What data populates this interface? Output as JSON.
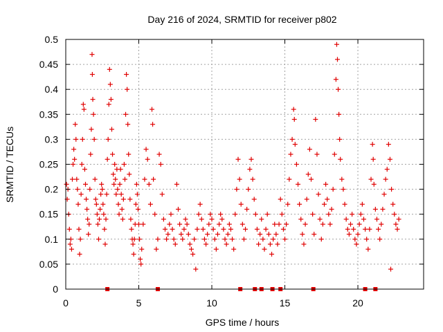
{
  "chart_data": {
    "type": "scatter",
    "title": "Day 216 of 2024, SRMTID for receiver p802",
    "xlabel": "GPS time / hours",
    "ylabel": "SRMTID / TECUs",
    "xlim": [
      0,
      24.5
    ],
    "ylim": [
      0,
      0.5
    ],
    "x_ticks": [
      0,
      5,
      10,
      15,
      20
    ],
    "x_tick_labels": [
      "0",
      "5",
      "10",
      "15",
      "20"
    ],
    "y_ticks": [
      0,
      0.05,
      0.1,
      0.15,
      0.2,
      0.25,
      0.3,
      0.35,
      0.4,
      0.45,
      0.5
    ],
    "y_tick_labels": [
      "0",
      "0.05",
      "0.1",
      "0.15",
      "0.2",
      "0.25",
      "0.3",
      "0.35",
      "0.4",
      "0.45",
      "0.5"
    ],
    "grid": true,
    "marker": "+",
    "color": "#e00000",
    "series": [
      {
        "name": "SRMTID",
        "points": [
          [
            0.05,
            0.21
          ],
          [
            0.1,
            0.18
          ],
          [
            0.15,
            0.2
          ],
          [
            0.2,
            0.15
          ],
          [
            0.25,
            0.12
          ],
          [
            0.3,
            0.09
          ],
          [
            0.35,
            0.1
          ],
          [
            0.4,
            0.08
          ],
          [
            0.45,
            0.22
          ],
          [
            0.5,
            0.25
          ],
          [
            0.55,
            0.28
          ],
          [
            0.6,
            0.26
          ],
          [
            0.65,
            0.33
          ],
          [
            0.7,
            0.3
          ],
          [
            0.75,
            0.22
          ],
          [
            0.8,
            0.2
          ],
          [
            0.85,
            0.17
          ],
          [
            0.9,
            0.12
          ],
          [
            0.95,
            0.07
          ],
          [
            1.0,
            0.1
          ],
          [
            1.05,
            0.19
          ],
          [
            1.1,
            0.25
          ],
          [
            1.15,
            0.3
          ],
          [
            1.2,
            0.37
          ],
          [
            1.25,
            0.36
          ],
          [
            1.3,
            0.24
          ],
          [
            1.35,
            0.21
          ],
          [
            1.4,
            0.18
          ],
          [
            1.45,
            0.16
          ],
          [
            1.5,
            0.14
          ],
          [
            1.55,
            0.11
          ],
          [
            1.6,
            0.13
          ],
          [
            1.65,
            0.2
          ],
          [
            1.7,
            0.27
          ],
          [
            1.75,
            0.32
          ],
          [
            1.8,
            0.47
          ],
          [
            1.82,
            0.43
          ],
          [
            1.85,
            0.38
          ],
          [
            1.9,
            0.35
          ],
          [
            1.95,
            0.3
          ],
          [
            2.0,
            0.22
          ],
          [
            2.05,
            0.18
          ],
          [
            2.1,
            0.17
          ],
          [
            2.15,
            0.15
          ],
          [
            2.2,
            0.13
          ],
          [
            2.25,
            0.1
          ],
          [
            2.3,
            0.14
          ],
          [
            2.35,
            0.16
          ],
          [
            2.4,
            0.19
          ],
          [
            2.45,
            0.21
          ],
          [
            2.5,
            0.2
          ],
          [
            2.55,
            0.17
          ],
          [
            2.6,
            0.15
          ],
          [
            2.65,
            0.12
          ],
          [
            2.7,
            0.09
          ],
          [
            2.75,
            0.14
          ],
          [
            2.8,
            0.19
          ],
          [
            2.85,
            0.26
          ],
          [
            2.9,
            0.3
          ],
          [
            2.95,
            0.37
          ],
          [
            3.0,
            0.44
          ],
          [
            3.05,
            0.41
          ],
          [
            3.1,
            0.38
          ],
          [
            3.15,
            0.32
          ],
          [
            3.2,
            0.27
          ],
          [
            3.25,
            0.23
          ],
          [
            3.3,
            0.21
          ],
          [
            3.35,
            0.25
          ],
          [
            3.4,
            0.22
          ],
          [
            3.45,
            0.19
          ],
          [
            3.5,
            0.24
          ],
          [
            3.55,
            0.2
          ],
          [
            3.6,
            0.17
          ],
          [
            3.65,
            0.15
          ],
          [
            3.7,
            0.21
          ],
          [
            3.75,
            0.24
          ],
          [
            3.8,
            0.19
          ],
          [
            3.85,
            0.16
          ],
          [
            3.9,
            0.14
          ],
          [
            3.95,
            0.18
          ],
          [
            4.0,
            0.25
          ],
          [
            4.05,
            0.22
          ],
          [
            4.1,
            0.35
          ],
          [
            4.15,
            0.43
          ],
          [
            4.2,
            0.4
          ],
          [
            4.25,
            0.33
          ],
          [
            4.3,
            0.27
          ],
          [
            4.35,
            0.23
          ],
          [
            4.4,
            0.18
          ],
          [
            4.45,
            0.14
          ],
          [
            4.5,
            0.12
          ],
          [
            4.55,
            0.1
          ],
          [
            4.6,
            0.09
          ],
          [
            4.65,
            0.07
          ],
          [
            4.7,
            0.1
          ],
          [
            4.75,
            0.13
          ],
          [
            4.8,
            0.17
          ],
          [
            4.85,
            0.21
          ],
          [
            4.9,
            0.19
          ],
          [
            4.95,
            0.16
          ],
          [
            5.0,
            0.13
          ],
          [
            5.05,
            0.1
          ],
          [
            5.1,
            0.06
          ],
          [
            5.15,
            0.05
          ],
          [
            5.2,
            0.08
          ],
          [
            5.3,
            0.13
          ],
          [
            5.4,
            0.22
          ],
          [
            5.5,
            0.28
          ],
          [
            5.6,
            0.26
          ],
          [
            5.7,
            0.21
          ],
          [
            5.8,
            0.17
          ],
          [
            5.9,
            0.36
          ],
          [
            5.95,
            0.33
          ],
          [
            6.0,
            0.22
          ],
          [
            6.1,
            0.15
          ],
          [
            6.2,
            0.08
          ],
          [
            6.3,
            0.1
          ],
          [
            6.4,
            0.27
          ],
          [
            6.5,
            0.25
          ],
          [
            6.6,
            0.19
          ],
          [
            6.7,
            0.14
          ],
          [
            6.8,
            0.12
          ],
          [
            6.9,
            0.1
          ],
          [
            7.0,
            0.11
          ],
          [
            7.1,
            0.13
          ],
          [
            7.2,
            0.15
          ],
          [
            7.3,
            0.12
          ],
          [
            7.4,
            0.1
          ],
          [
            7.5,
            0.09
          ],
          [
            7.6,
            0.21
          ],
          [
            7.7,
            0.16
          ],
          [
            7.8,
            0.13
          ],
          [
            7.9,
            0.11
          ],
          [
            8.0,
            0.1
          ],
          [
            8.1,
            0.12
          ],
          [
            8.2,
            0.14
          ],
          [
            8.3,
            0.13
          ],
          [
            8.4,
            0.11
          ],
          [
            8.5,
            0.09
          ],
          [
            8.6,
            0.08
          ],
          [
            8.7,
            0.07
          ],
          [
            8.8,
            0.1
          ],
          [
            8.9,
            0.04
          ],
          [
            9.0,
            0.12
          ],
          [
            9.1,
            0.15
          ],
          [
            9.2,
            0.17
          ],
          [
            9.3,
            0.14
          ],
          [
            9.4,
            0.12
          ],
          [
            9.5,
            0.1
          ],
          [
            9.6,
            0.09
          ],
          [
            9.7,
            0.11
          ],
          [
            9.8,
            0.13
          ],
          [
            9.9,
            0.15
          ],
          [
            10.0,
            0.14
          ],
          [
            10.1,
            0.12
          ],
          [
            10.2,
            0.1
          ],
          [
            10.3,
            0.08
          ],
          [
            10.4,
            0.11
          ],
          [
            10.5,
            0.13
          ],
          [
            10.6,
            0.15
          ],
          [
            10.7,
            0.14
          ],
          [
            10.8,
            0.12
          ],
          [
            10.9,
            0.1
          ],
          [
            11.0,
            0.09
          ],
          [
            11.1,
            0.11
          ],
          [
            11.2,
            0.13
          ],
          [
            11.3,
            0.12
          ],
          [
            11.4,
            0.1
          ],
          [
            11.5,
            0.08
          ],
          [
            11.6,
            0.15
          ],
          [
            11.7,
            0.2
          ],
          [
            11.8,
            0.26
          ],
          [
            11.9,
            0.22
          ],
          [
            12.0,
            0.17
          ],
          [
            12.1,
            0.13
          ],
          [
            12.2,
            0.1
          ],
          [
            12.3,
            0.12
          ],
          [
            12.4,
            0.16
          ],
          [
            12.5,
            0.2
          ],
          [
            12.6,
            0.24
          ],
          [
            12.7,
            0.26
          ],
          [
            12.8,
            0.22
          ],
          [
            12.9,
            0.18
          ],
          [
            13.0,
            0.15
          ],
          [
            13.1,
            0.12
          ],
          [
            13.2,
            0.09
          ],
          [
            13.3,
            0.11
          ],
          [
            13.4,
            0.14
          ],
          [
            13.5,
            0.1
          ],
          [
            13.6,
            0.08
          ],
          [
            13.7,
            0.12
          ],
          [
            13.8,
            0.15
          ],
          [
            13.9,
            0.11
          ],
          [
            14.0,
            0.09
          ],
          [
            14.1,
            0.07
          ],
          [
            14.2,
            0.1
          ],
          [
            14.3,
            0.13
          ],
          [
            14.4,
            0.11
          ],
          [
            14.5,
            0.09
          ],
          [
            14.6,
            0.13
          ],
          [
            14.7,
            0.18
          ],
          [
            14.8,
            0.15
          ],
          [
            14.9,
            0.12
          ],
          [
            15.0,
            0.1
          ],
          [
            15.1,
            0.13
          ],
          [
            15.2,
            0.17
          ],
          [
            15.3,
            0.22
          ],
          [
            15.4,
            0.27
          ],
          [
            15.5,
            0.3
          ],
          [
            15.6,
            0.36
          ],
          [
            15.65,
            0.34
          ],
          [
            15.7,
            0.29
          ],
          [
            15.8,
            0.25
          ],
          [
            15.9,
            0.21
          ],
          [
            16.0,
            0.17
          ],
          [
            16.1,
            0.14
          ],
          [
            16.2,
            0.11
          ],
          [
            16.3,
            0.09
          ],
          [
            16.4,
            0.13
          ],
          [
            16.5,
            0.18
          ],
          [
            16.6,
            0.23
          ],
          [
            16.7,
            0.28
          ],
          [
            16.8,
            0.22
          ],
          [
            16.9,
            0.15
          ],
          [
            17.0,
            0.11
          ],
          [
            17.1,
            0.34
          ],
          [
            17.2,
            0.27
          ],
          [
            17.3,
            0.19
          ],
          [
            17.4,
            0.14
          ],
          [
            17.5,
            0.1
          ],
          [
            17.6,
            0.13
          ],
          [
            17.7,
            0.17
          ],
          [
            17.8,
            0.21
          ],
          [
            17.9,
            0.18
          ],
          [
            18.0,
            0.15
          ],
          [
            18.1,
            0.13
          ],
          [
            18.2,
            0.16
          ],
          [
            18.3,
            0.2
          ],
          [
            18.4,
            0.27
          ],
          [
            18.5,
            0.42
          ],
          [
            18.55,
            0.49
          ],
          [
            18.6,
            0.46
          ],
          [
            18.65,
            0.4
          ],
          [
            18.7,
            0.35
          ],
          [
            18.75,
            0.3
          ],
          [
            18.8,
            0.26
          ],
          [
            18.9,
            0.22
          ],
          [
            19.0,
            0.2
          ],
          [
            19.1,
            0.17
          ],
          [
            19.2,
            0.14
          ],
          [
            19.3,
            0.12
          ],
          [
            19.4,
            0.11
          ],
          [
            19.5,
            0.13
          ],
          [
            19.6,
            0.15
          ],
          [
            19.7,
            0.12
          ],
          [
            19.8,
            0.1
          ],
          [
            19.9,
            0.09
          ],
          [
            20.0,
            0.11
          ],
          [
            20.1,
            0.13
          ],
          [
            20.2,
            0.15
          ],
          [
            20.3,
            0.17
          ],
          [
            20.4,
            0.14
          ],
          [
            20.5,
            0.12
          ],
          [
            20.6,
            0.1
          ],
          [
            20.7,
            0.08
          ],
          [
            20.8,
            0.12
          ],
          [
            20.9,
            0.22
          ],
          [
            21.0,
            0.29
          ],
          [
            21.05,
            0.26
          ],
          [
            21.1,
            0.21
          ],
          [
            21.2,
            0.16
          ],
          [
            21.3,
            0.14
          ],
          [
            21.4,
            0.12
          ],
          [
            21.5,
            0.1
          ],
          [
            21.6,
            0.13
          ],
          [
            21.7,
            0.16
          ],
          [
            21.8,
            0.19
          ],
          [
            21.9,
            0.22
          ],
          [
            22.0,
            0.24
          ],
          [
            22.1,
            0.29
          ],
          [
            22.2,
            0.26
          ],
          [
            22.25,
            0.04
          ],
          [
            22.3,
            0.2
          ],
          [
            22.4,
            0.17
          ],
          [
            22.5,
            0.15
          ],
          [
            22.6,
            0.13
          ],
          [
            22.7,
            0.12
          ],
          [
            22.8,
            0.14
          ]
        ]
      }
    ],
    "gap_markers_x": [
      2.85,
      6.3,
      11.95,
      12.95,
      13.4,
      14.15,
      14.7,
      16.95,
      20.5,
      21.2
    ]
  }
}
